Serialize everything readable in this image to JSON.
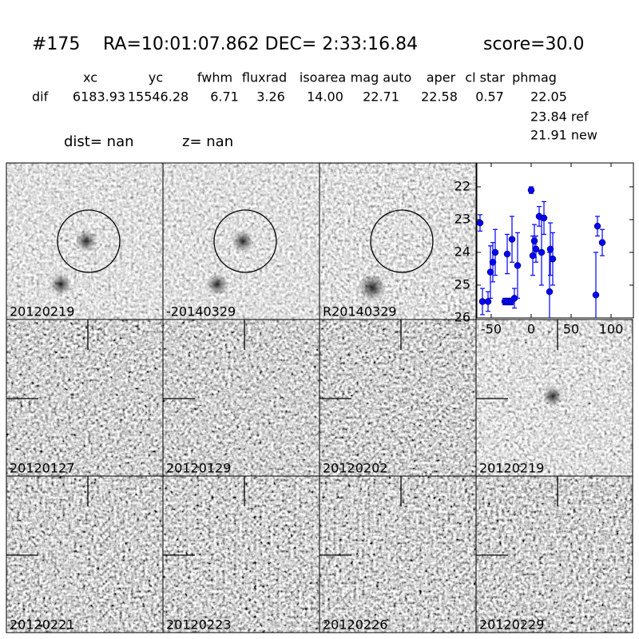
{
  "header": {
    "id": "#175",
    "coords": "RA=10:01:07.862 DEC= 2:33:16.84",
    "score": "score=30.0"
  },
  "table": {
    "columns": [
      "xc",
      "yc",
      "fwhm",
      "fluxrad",
      "isoarea",
      "mag auto",
      "aper",
      "cl star",
      "phmag"
    ],
    "row_label": "dif",
    "values": [
      "6183.93",
      "15546.28",
      "6.71",
      "3.26",
      "14.00",
      "22.71",
      "22.58",
      "0.57",
      "22.05"
    ],
    "extra": [
      "23.84 ref",
      "21.91 new"
    ]
  },
  "distance": {
    "dist": "dist=   nan",
    "z": "z=   nan"
  },
  "panels": [
    {
      "label": "20120219"
    },
    {
      "label": "-20140329"
    },
    {
      "label": "R20140329"
    },
    {
      "label": "20120127"
    },
    {
      "label": "20120129"
    },
    {
      "label": "20120202"
    },
    {
      "label": "20120219",
      "color": "#ff0000"
    },
    {
      "label": "20120221"
    },
    {
      "label": "20120223"
    },
    {
      "label": "20120226"
    },
    {
      "label": "20120229"
    }
  ],
  "chart_data": {
    "type": "errorbar",
    "color": "#0000ff",
    "x": [
      -64,
      -61,
      -54,
      -51,
      -48,
      -45,
      -33,
      -29,
      -25,
      -30,
      -24,
      -21,
      -17,
      0,
      2,
      4,
      6,
      10,
      13,
      16,
      23,
      24,
      27,
      81,
      83,
      89
    ],
    "values": [
      23.1,
      25.5,
      25.5,
      24.6,
      24.3,
      24.0,
      25.5,
      25.5,
      25.5,
      24.05,
      23.6,
      25.4,
      24.4,
      22.1,
      24.1,
      23.65,
      23.9,
      22.9,
      24.0,
      22.95,
      25.2,
      23.9,
      24.2,
      25.3,
      23.2,
      23.7
    ],
    "errors": [
      0.25,
      0.4,
      0.3,
      0.8,
      0.6,
      0.7,
      0.1,
      0.1,
      0.1,
      0.6,
      0.7,
      0.3,
      1.0,
      0.1,
      0.6,
      0.5,
      0.4,
      0.3,
      1.0,
      0.5,
      1.2,
      0.8,
      0.8,
      1.3,
      0.3,
      0.4
    ],
    "xlim": [
      -68,
      128
    ],
    "ylim": [
      26,
      21.27
    ],
    "xticks": [
      -50,
      0,
      50,
      100
    ],
    "yticks": [
      22,
      23,
      24,
      25,
      26
    ]
  }
}
